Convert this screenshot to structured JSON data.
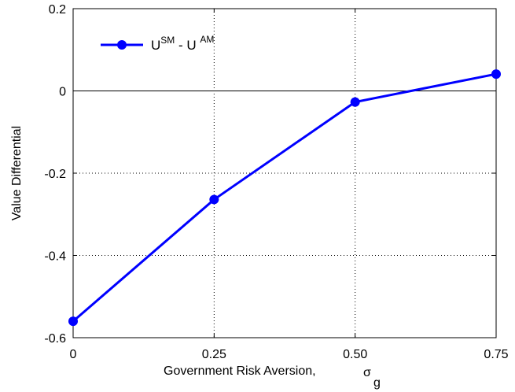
{
  "chart_data": {
    "type": "line",
    "x": [
      0,
      0.25,
      0.5,
      0.75
    ],
    "xticks": [
      "0",
      "0.25",
      "0.50",
      "0.75"
    ],
    "yticks": [
      "0.2",
      "0",
      "-0.2",
      "-0.4",
      "-0.6"
    ],
    "xlim": [
      0,
      0.75
    ],
    "ylim": [
      -0.6,
      0.2
    ],
    "xlabel": "Government Risk Aversion,",
    "xlabel_symbol": "σ",
    "xlabel_subscript": "g",
    "ylabel": "Value Differential",
    "grid": true,
    "zero_line": true,
    "legend_position": "top-left",
    "series": [
      {
        "name": "U^SM - U^AM",
        "legend": {
          "u1": "U",
          "sup1": "SM",
          "mid": " - U ",
          "sup2": "AM"
        },
        "color": "#0000ff",
        "values": [
          -0.56,
          -0.264,
          -0.027,
          0.041
        ]
      }
    ]
  }
}
